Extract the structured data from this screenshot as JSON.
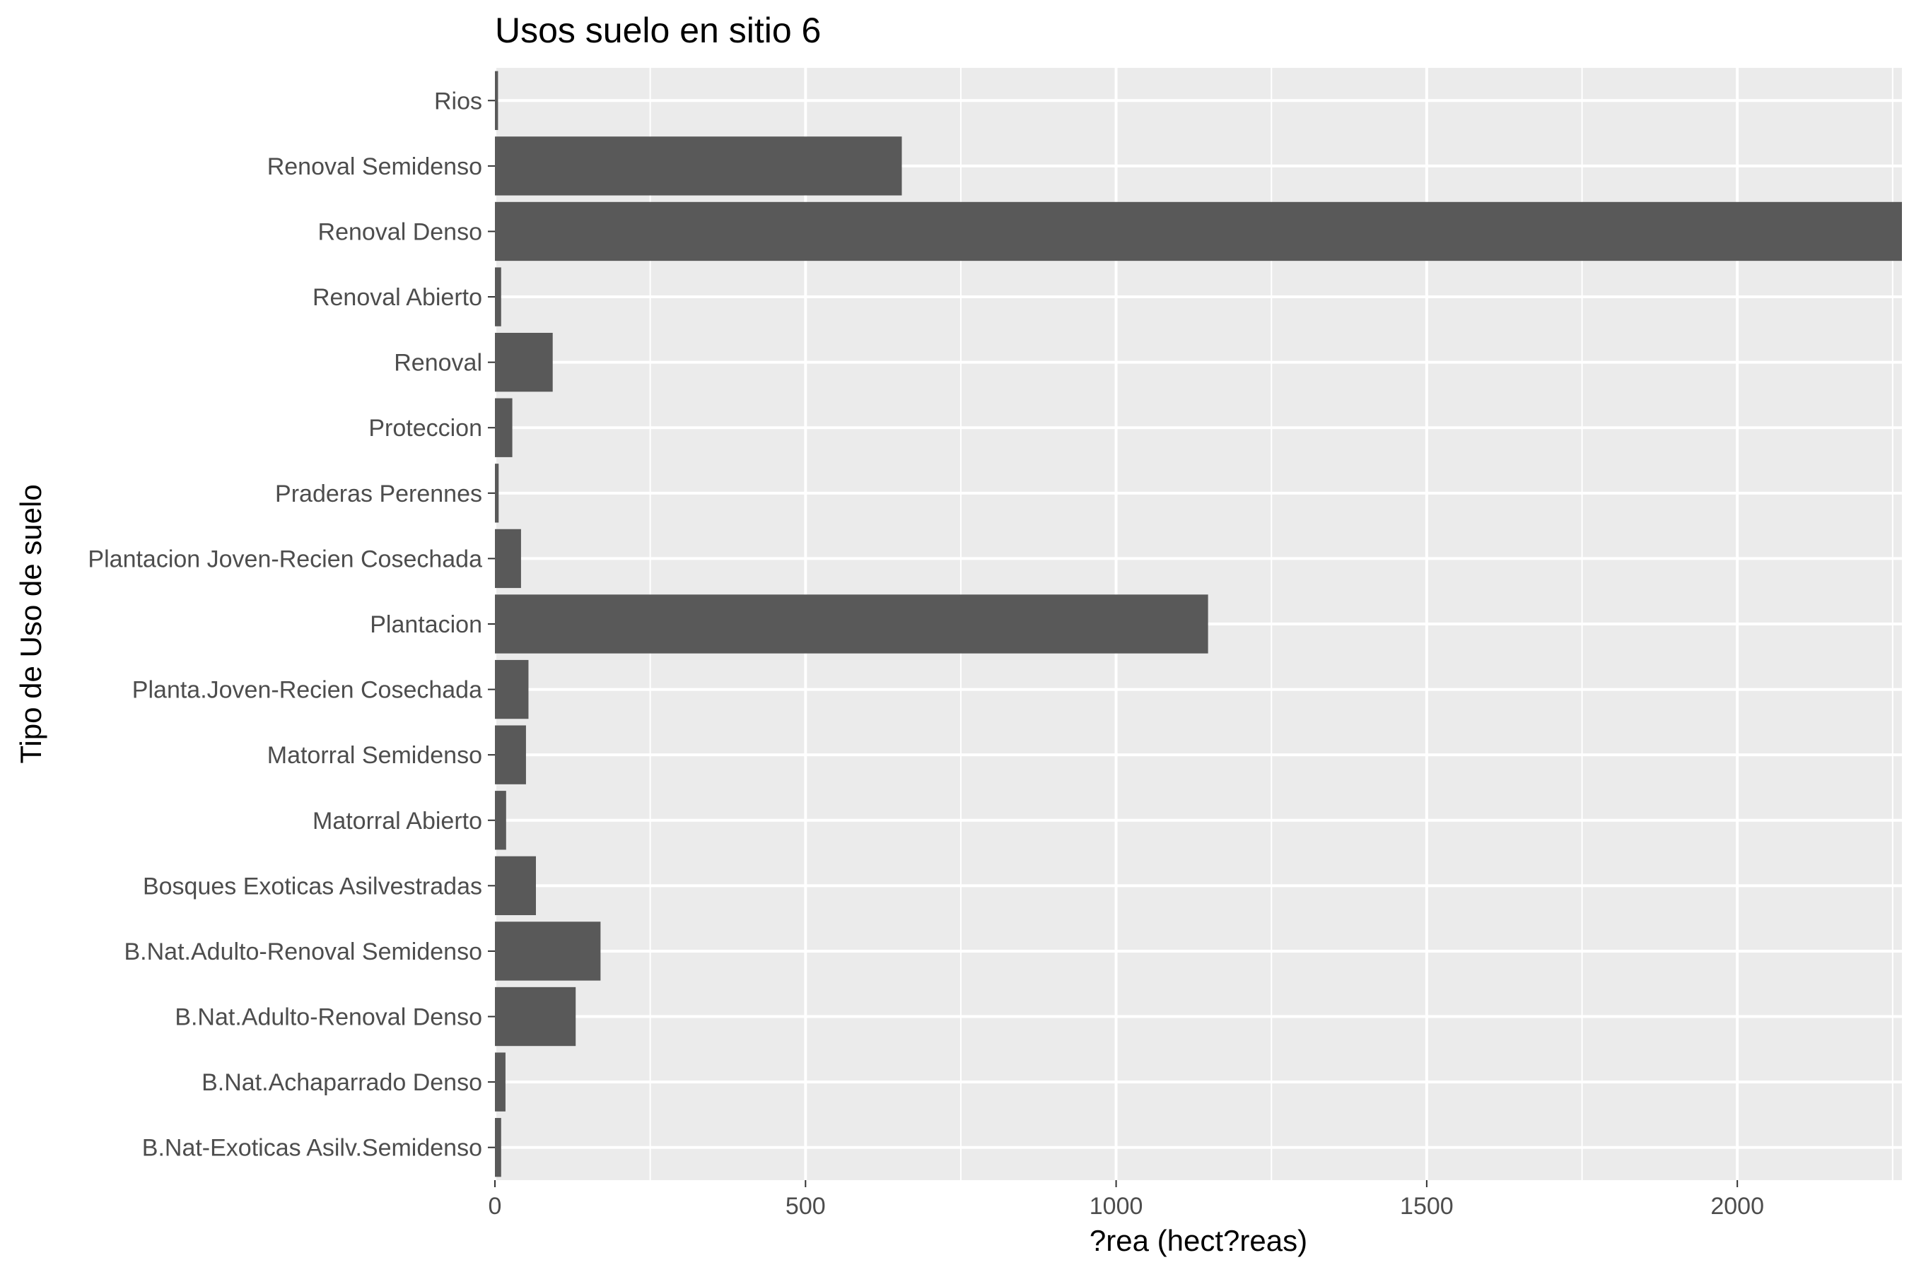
{
  "chart_data": {
    "type": "bar",
    "orientation": "horizontal",
    "title": "Usos suelo en sitio 6",
    "xlabel": "?rea (hect?reas)",
    "ylabel": "Tipo de Uso de suelo",
    "xlim": [
      0,
      2265
    ],
    "x_ticks": [
      "0",
      "500",
      "1000",
      "1500",
      "2000"
    ],
    "categories": [
      "B.Nat-Exoticas Asilv.Semidenso",
      "B.Nat.Achaparrado Denso",
      "B.Nat.Adulto-Renoval Denso",
      "B.Nat.Adulto-Renoval Semidenso",
      "Bosques Exoticas Asilvestradas",
      "Matorral Abierto",
      "Matorral Semidenso",
      "Planta.Joven-Recien Cosechada",
      "Plantacion",
      "Plantacion Joven-Recien Cosechada",
      "Praderas Perennes",
      "Proteccion",
      "Renoval",
      "Renoval Abierto",
      "Renoval Denso",
      "Renoval Semidenso",
      "Rios"
    ],
    "values": [
      10,
      17,
      130,
      170,
      66,
      18,
      50,
      54,
      1148,
      42,
      6,
      28,
      93,
      10,
      2265,
      655,
      5
    ],
    "bar_color": "#595959",
    "panel_background": "#ebebeb",
    "grid": true,
    "legend": "none"
  }
}
